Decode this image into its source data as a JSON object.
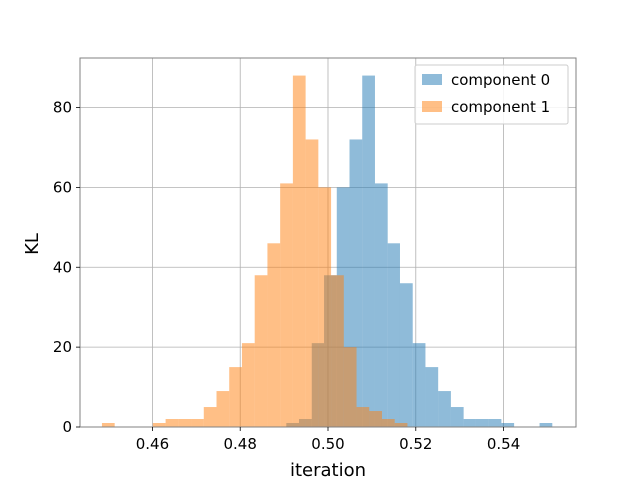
{
  "chart_data": {
    "type": "bar",
    "subtype": "histogram",
    "xlabel": "iteration",
    "ylabel": "KL",
    "xlim": [
      0.4435,
      0.5565
    ],
    "ylim": [
      0,
      92.4
    ],
    "xticks": [
      0.46,
      0.48,
      0.5,
      0.52,
      0.54
    ],
    "xtick_labels": [
      "0.46",
      "0.48",
      "0.50",
      "0.52",
      "0.54"
    ],
    "yticks": [
      0,
      20,
      40,
      60,
      80
    ],
    "ytick_labels": [
      "0",
      "20",
      "40",
      "60",
      "80"
    ],
    "grid": true,
    "legend_position": "top-right",
    "series": [
      {
        "name": "component 0",
        "color": "#1f77b4",
        "alpha": 0.5,
        "bins": [
          {
            "x0": 0.4905,
            "x1": 0.4934,
            "count": 1
          },
          {
            "x0": 0.4934,
            "x1": 0.4963,
            "count": 2
          },
          {
            "x0": 0.4963,
            "x1": 0.4991,
            "count": 21
          },
          {
            "x0": 0.4991,
            "x1": 0.502,
            "count": 38
          },
          {
            "x0": 0.502,
            "x1": 0.5049,
            "count": 60
          },
          {
            "x0": 0.5049,
            "x1": 0.5078,
            "count": 72
          },
          {
            "x0": 0.5078,
            "x1": 0.5107,
            "count": 88
          },
          {
            "x0": 0.5107,
            "x1": 0.5136,
            "count": 61
          },
          {
            "x0": 0.5136,
            "x1": 0.5164,
            "count": 46
          },
          {
            "x0": 0.5164,
            "x1": 0.5193,
            "count": 36
          },
          {
            "x0": 0.5193,
            "x1": 0.5222,
            "count": 21
          },
          {
            "x0": 0.5222,
            "x1": 0.5251,
            "count": 15
          },
          {
            "x0": 0.5251,
            "x1": 0.528,
            "count": 9
          },
          {
            "x0": 0.528,
            "x1": 0.5309,
            "count": 5
          },
          {
            "x0": 0.5309,
            "x1": 0.5337,
            "count": 2
          },
          {
            "x0": 0.5337,
            "x1": 0.5366,
            "count": 2
          },
          {
            "x0": 0.5366,
            "x1": 0.5395,
            "count": 2
          },
          {
            "x0": 0.5395,
            "x1": 0.5424,
            "count": 1
          },
          {
            "x0": 0.5482,
            "x1": 0.5511,
            "count": 1
          }
        ]
      },
      {
        "name": "component 1",
        "color": "#ff7f0e",
        "alpha": 0.5,
        "bins": [
          {
            "x0": 0.4485,
            "x1": 0.4514,
            "count": 1
          },
          {
            "x0": 0.4601,
            "x1": 0.463,
            "count": 1
          },
          {
            "x0": 0.463,
            "x1": 0.4659,
            "count": 2
          },
          {
            "x0": 0.4659,
            "x1": 0.4688,
            "count": 2
          },
          {
            "x0": 0.4688,
            "x1": 0.4717,
            "count": 2
          },
          {
            "x0": 0.4717,
            "x1": 0.4746,
            "count": 5
          },
          {
            "x0": 0.4746,
            "x1": 0.4775,
            "count": 9
          },
          {
            "x0": 0.4775,
            "x1": 0.4804,
            "count": 15
          },
          {
            "x0": 0.4804,
            "x1": 0.4833,
            "count": 21
          },
          {
            "x0": 0.4833,
            "x1": 0.4862,
            "count": 38
          },
          {
            "x0": 0.4862,
            "x1": 0.4891,
            "count": 46
          },
          {
            "x0": 0.4891,
            "x1": 0.492,
            "count": 61
          },
          {
            "x0": 0.492,
            "x1": 0.4949,
            "count": 88
          },
          {
            "x0": 0.4949,
            "x1": 0.4978,
            "count": 72
          },
          {
            "x0": 0.4978,
            "x1": 0.5007,
            "count": 60
          },
          {
            "x0": 0.5007,
            "x1": 0.5036,
            "count": 38
          },
          {
            "x0": 0.5036,
            "x1": 0.5065,
            "count": 20
          },
          {
            "x0": 0.5065,
            "x1": 0.5094,
            "count": 5
          },
          {
            "x0": 0.5094,
            "x1": 0.5123,
            "count": 4
          },
          {
            "x0": 0.5123,
            "x1": 0.5152,
            "count": 2
          },
          {
            "x0": 0.5152,
            "x1": 0.5181,
            "count": 1
          }
        ]
      }
    ]
  }
}
